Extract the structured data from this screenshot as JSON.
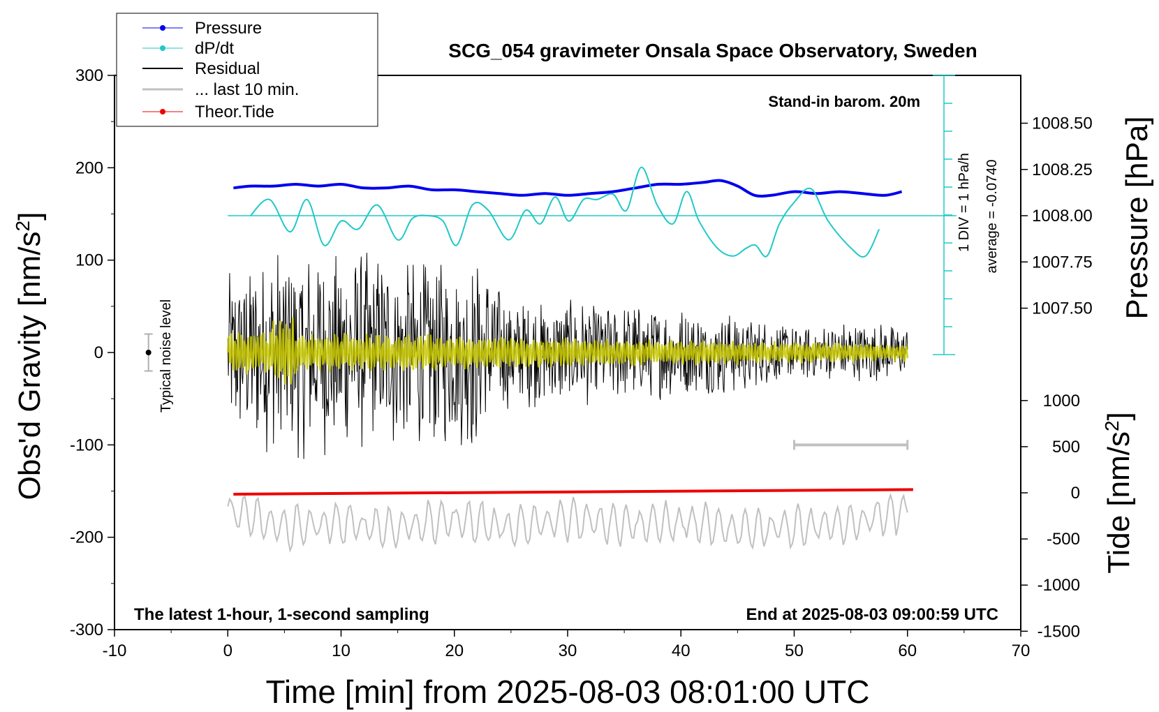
{
  "chart_data": {
    "type": "line",
    "title": "SCG_054 gravimeter Onsala Space Observatory, Sweden",
    "xlabel": "Time [min] from 2025-08-03 08:01:00 UTC",
    "ylabel_left": "Obs'd Gravity [nm/s2]",
    "ylabel_right_top": "Pressure [hPa]",
    "ylabel_right_bottom": "Tide [nm/s2]",
    "xlim": [
      -10,
      70
    ],
    "ylim_left": [
      -300,
      300
    ],
    "x_ticks": [
      "-10",
      "0",
      "10",
      "20",
      "30",
      "40",
      "50",
      "60",
      "70"
    ],
    "y_ticks_left": [
      "300",
      "200",
      "100",
      "0",
      "-100",
      "-200",
      "-300"
    ],
    "pressure_ticks": [
      "1008.50",
      "1008.25",
      "1008.00",
      "1007.75",
      "1007.50"
    ],
    "tide_ticks": [
      "1000",
      "500",
      "0",
      "-500",
      "-1000",
      "-1500"
    ],
    "annotations": {
      "barometer": "Stand-in barom. 20m",
      "bottom_left": "The latest 1-hour, 1-second sampling",
      "bottom_right": "End at 2025-08-03 09:00:59 UTC",
      "scale_div": "1 DIV = 1 hPa/h",
      "scale_avg": "average = -0.0740",
      "noise": "Typical noise level"
    },
    "legend": [
      {
        "label": "Pressure",
        "color": "#0000ee"
      },
      {
        "label": "dP/dt",
        "color": "#20c8c8"
      },
      {
        "label": "Residual",
        "color": "#000000"
      },
      {
        "label": "... last 10 min.",
        "color": "#c0c0c0"
      },
      {
        "label": "Theor.Tide",
        "color": "#ee0000"
      }
    ],
    "series": [
      {
        "name": "Pressure",
        "unit": "hPa",
        "color": "#0000ee",
        "x": [
          0.5,
          2,
          4,
          6,
          8,
          10,
          12,
          14,
          16,
          18,
          20,
          22,
          24,
          26,
          28,
          30,
          32,
          34,
          36,
          38,
          40,
          42,
          43.5,
          45,
          46.5,
          48,
          50,
          52,
          54,
          56,
          58,
          59.5
        ],
        "values": [
          1008.15,
          1008.16,
          1008.16,
          1008.17,
          1008.16,
          1008.17,
          1008.15,
          1008.15,
          1008.16,
          1008.14,
          1008.14,
          1008.13,
          1008.12,
          1008.11,
          1008.12,
          1008.11,
          1008.12,
          1008.13,
          1008.15,
          1008.17,
          1008.17,
          1008.18,
          1008.19,
          1008.16,
          1008.11,
          1008.11,
          1008.13,
          1008.12,
          1008.13,
          1008.12,
          1008.11,
          1008.13
        ]
      },
      {
        "name": "dP/dt",
        "unit": "hPa/h",
        "color": "#20c8c8",
        "x": [
          2,
          3.7,
          5.5,
          7,
          8.5,
          10,
          11.5,
          13.2,
          15,
          16.3,
          17.7,
          19,
          20.2,
          21.6,
          23,
          24.8,
          26.3,
          27.6,
          28.9,
          30.1,
          31.4,
          32.6,
          34,
          35.2,
          36.5,
          37.9,
          39.3,
          40.5,
          41.6,
          43.2,
          44.6,
          45.8,
          46.6,
          47.6,
          48.7,
          50,
          51.5,
          53,
          55,
          56.3,
          57.5
        ],
        "values": [
          0,
          0.6,
          -0.6,
          0.6,
          -1.1,
          -0.2,
          -0.5,
          0.4,
          -0.9,
          -0.1,
          0,
          -0.2,
          -1.1,
          0.4,
          0.2,
          -0.9,
          0.2,
          -0.3,
          0.7,
          -0.2,
          0.6,
          0.6,
          0.8,
          0.2,
          1.8,
          0.4,
          -0.3,
          0.9,
          -0.2,
          -1.2,
          -1.5,
          -1.2,
          -1.1,
          -1.5,
          -0.3,
          0.5,
          1,
          -0.2,
          -1.2,
          -1.5,
          -0.5
        ],
        "average": -0.074
      },
      {
        "name": "Residual",
        "unit": "nm/s2",
        "color": "#000000",
        "x": [
          0,
          5,
          10,
          15,
          20,
          22,
          25,
          30,
          35,
          40,
          45,
          50,
          55,
          60
        ],
        "envelope": [
          90,
          120,
          110,
          110,
          100,
          110,
          60,
          60,
          55,
          50,
          45,
          30,
          35,
          30
        ]
      },
      {
        "name": "... last 10 min.",
        "unit": "nm/s2",
        "color": "#c0c0c0",
        "x": [
          0,
          5,
          10,
          15,
          20,
          25,
          30,
          35,
          40,
          45,
          50,
          55,
          60
        ],
        "values": [
          -170,
          -190,
          -185,
          -190,
          -180,
          -190,
          -180,
          -185,
          -185,
          -190,
          -190,
          -185,
          -170
        ]
      },
      {
        "name": "Theor.Tide",
        "unit": "nm/s2",
        "color": "#ee0000",
        "x": [
          0.5,
          60.5
        ],
        "values": [
          -15,
          35
        ]
      },
      {
        "name": "Residual (yellow overlay)",
        "unit": "nm/s2",
        "color": "#c8c800",
        "x": [
          0,
          60
        ],
        "envelope": [
          25,
          10
        ]
      }
    ],
    "scale_bar": {
      "x": [
        50,
        60
      ],
      "y": -100
    },
    "noise_level": {
      "x": -7,
      "center": 0,
      "half_range": 20
    }
  }
}
